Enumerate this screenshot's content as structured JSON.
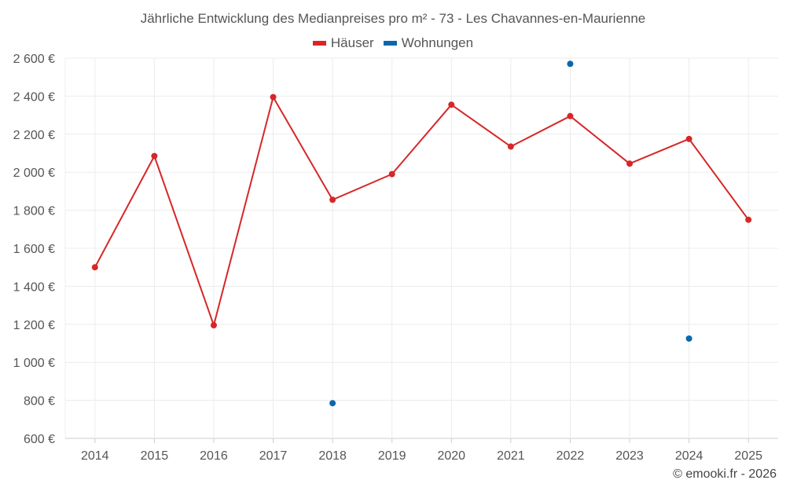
{
  "chart_data": {
    "type": "line",
    "title": "Jährliche Entwicklung des Medianpreises pro m² - 73 - Les Chavannes-en-Maurienne",
    "categories": [
      "2014",
      "2015",
      "2016",
      "2017",
      "2018",
      "2019",
      "2020",
      "2021",
      "2022",
      "2023",
      "2024",
      "2025"
    ],
    "ylim": [
      600,
      2600
    ],
    "yticks": [
      600,
      800,
      1000,
      1200,
      1400,
      1600,
      1800,
      2000,
      2200,
      2400,
      2600
    ],
    "ytick_labels": [
      "600 €",
      "800 €",
      "1 000 €",
      "1 200 €",
      "1 400 €",
      "1 600 €",
      "1 800 €",
      "2 000 €",
      "2 200 €",
      "2 400 €",
      "2 600 €"
    ],
    "grid": true,
    "legend_position": "top-center",
    "series": [
      {
        "name": "Häuser",
        "color": "#d62728",
        "style": "line-markers",
        "values": [
          1500,
          2085,
          1195,
          2395,
          1855,
          1990,
          2355,
          2135,
          2295,
          2045,
          2175,
          1750
        ]
      },
      {
        "name": "Wohnungen",
        "color": "#0868ac",
        "style": "markers",
        "values": [
          null,
          null,
          null,
          null,
          785,
          null,
          null,
          null,
          2570,
          null,
          1125,
          null
        ]
      }
    ]
  },
  "credit": "© emooki.fr - 2026"
}
